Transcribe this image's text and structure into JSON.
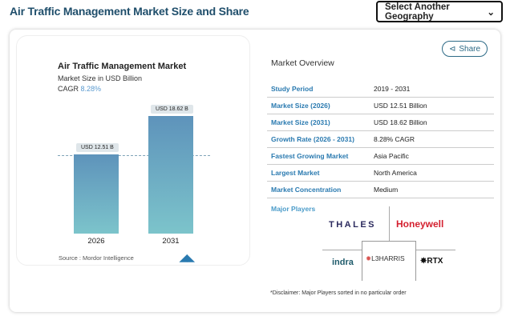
{
  "header": {
    "title": "Air Traffic Management Market Size and Share",
    "geo_select": "Select Another Geography"
  },
  "chart_card": {
    "title": "Air Traffic Management Market",
    "subtitle": "Market Size in USD Billion",
    "cagr_label": "CAGR",
    "cagr_value": "8.28%",
    "source": "Source :  Mordor Intelligence"
  },
  "chart_data": {
    "type": "bar",
    "title": "Air Traffic Management Market",
    "ylabel": "Market Size in USD Billion",
    "categories": [
      "2026",
      "2031"
    ],
    "values": [
      12.51,
      18.62
    ],
    "data_labels": [
      "USD 12.51 B",
      "USD 18.62 B"
    ],
    "ylim": [
      0,
      20
    ],
    "colors": [
      "#5e93bb",
      "#7cc4cb"
    ]
  },
  "overview": {
    "share": "Share",
    "title": "Market Overview",
    "rows": [
      {
        "k": "Study Period",
        "v": "2019 - 2031"
      },
      {
        "k": "Market Size (2026)",
        "v": "USD 12.51 Billion"
      },
      {
        "k": "Market Size (2031)",
        "v": "USD 18.62 Billion"
      },
      {
        "k": "Growth Rate (2026 - 2031)",
        "v": "8.28% CAGR"
      },
      {
        "k": "Fastest Growing Market",
        "v": "Asia Pacific"
      },
      {
        "k": "Largest Market",
        "v": "North America"
      },
      {
        "k": "Market Concentration",
        "v": "Medium"
      }
    ],
    "players_label": "Major Players",
    "players": [
      "THALES",
      "Honeywell",
      "indra",
      "L3HARRIS",
      "RTX"
    ],
    "disclaimer": "*Disclaimer: Major Players sorted in no particular order"
  }
}
